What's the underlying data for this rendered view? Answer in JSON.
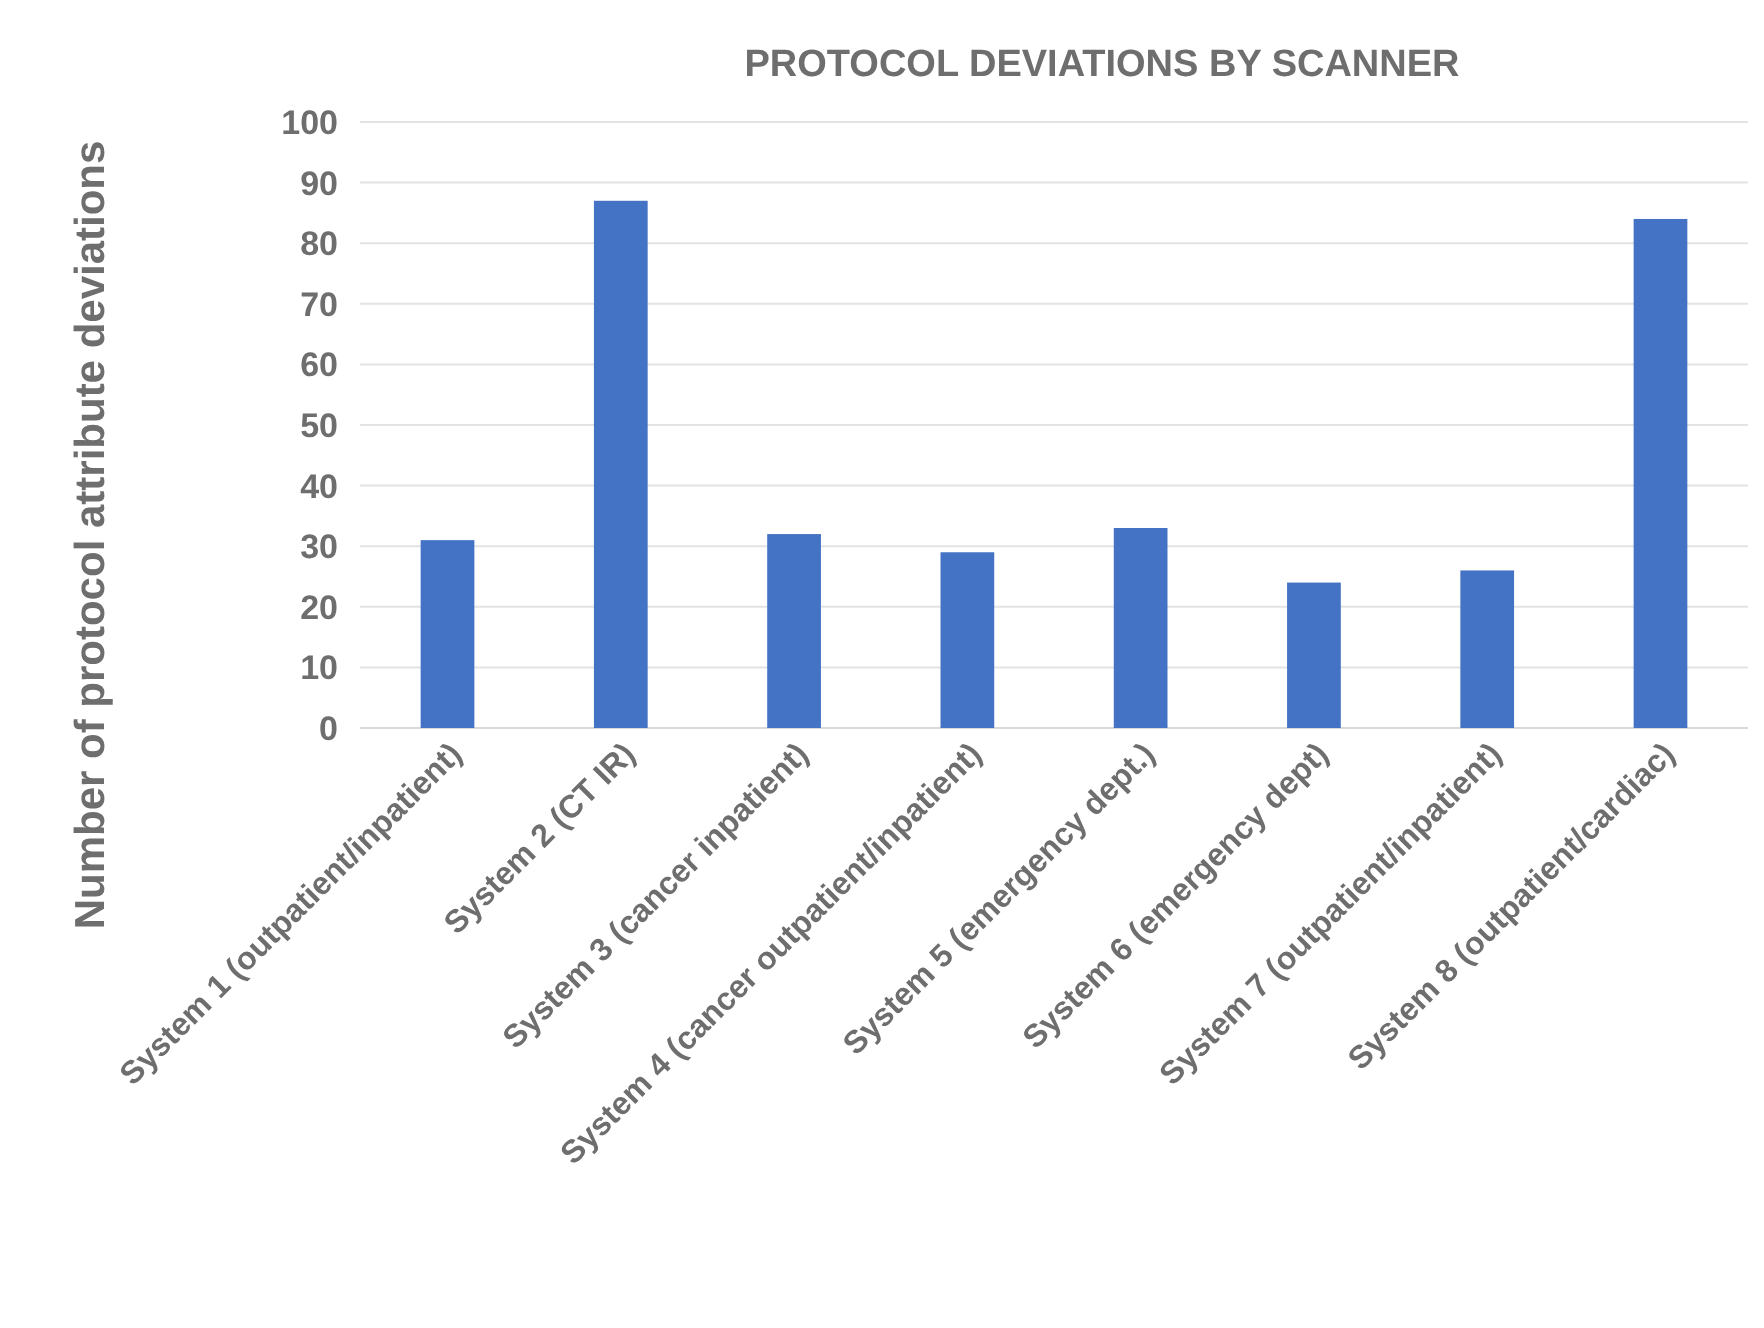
{
  "chart_data": {
    "type": "bar",
    "title": "PROTOCOL DEVIATIONS BY SCANNER",
    "ylabel": "Number of protocol attribute deviations",
    "categories": [
      "System 1 (outpatient/inpatient)",
      "System 2 (CT IR)",
      "System 3 (cancer inpatient)",
      "System 4 (cancer outpatient/inpatient)",
      "System 5 (emergency dept.)",
      "System 6 (emergency dept)",
      "System 7 (outpatient/inpatient)",
      "System 8 (outpatient/cardiac)"
    ],
    "values": [
      31,
      87,
      32,
      29,
      33,
      24,
      26,
      84
    ],
    "color": "#4472c4",
    "ylim": [
      0,
      100
    ],
    "yticks": [
      0,
      10,
      20,
      30,
      40,
      50,
      60,
      70,
      80,
      90,
      100
    ],
    "grid": "y"
  }
}
